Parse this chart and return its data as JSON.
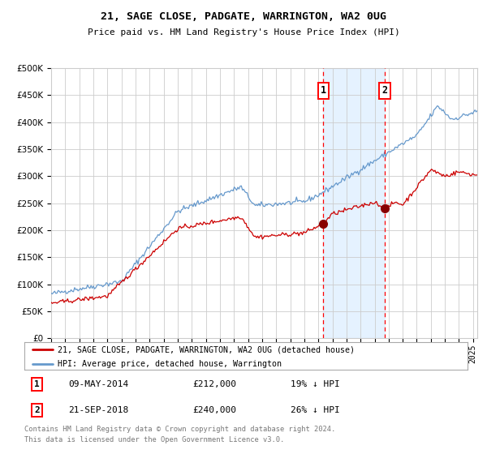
{
  "title": "21, SAGE CLOSE, PADGATE, WARRINGTON, WA2 0UG",
  "subtitle": "Price paid vs. HM Land Registry's House Price Index (HPI)",
  "legend_line1": "21, SAGE CLOSE, PADGATE, WARRINGTON, WA2 0UG (detached house)",
  "legend_line2": "HPI: Average price, detached house, Warrington",
  "annotation1_date": "09-MAY-2014",
  "annotation1_price": 212000,
  "annotation1_hpi": "19% ↓ HPI",
  "annotation1_year": 2014.36,
  "annotation2_date": "21-SEP-2018",
  "annotation2_price": 240000,
  "annotation2_hpi": "26% ↓ HPI",
  "annotation2_year": 2018.72,
  "footnote1": "Contains HM Land Registry data © Crown copyright and database right 2024.",
  "footnote2": "This data is licensed under the Open Government Licence v3.0.",
  "hpi_color": "#6699cc",
  "price_color": "#cc0000",
  "dot_color": "#880000",
  "shade_color": "#ddeeff",
  "grid_color": "#cccccc",
  "ylim": [
    0,
    500000
  ],
  "yticks": [
    0,
    50000,
    100000,
    150000,
    200000,
    250000,
    300000,
    350000,
    400000,
    450000,
    500000
  ],
  "xlim_start": 1995.0,
  "xlim_end": 2025.3
}
